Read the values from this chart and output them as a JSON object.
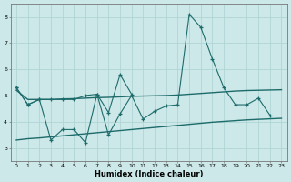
{
  "xlabel": "Humidex (Indice chaleur)",
  "xlim": [
    -0.5,
    23.5
  ],
  "ylim": [
    2.5,
    8.5
  ],
  "yticks": [
    3,
    4,
    5,
    6,
    7,
    8
  ],
  "xticks": [
    0,
    1,
    2,
    3,
    4,
    5,
    6,
    7,
    8,
    9,
    10,
    11,
    12,
    13,
    14,
    15,
    16,
    17,
    18,
    19,
    20,
    21,
    22,
    23
  ],
  "bg_color": "#cce8e8",
  "grid_color": "#b0d4d4",
  "line_color": "#1e6b6b",
  "series": {
    "line1_volatile": [
      5.3,
      4.65,
      4.85,
      3.3,
      3.7,
      3.7,
      3.2,
      5.05,
      3.5,
      4.3,
      5.0,
      4.1,
      4.4,
      4.6,
      4.65,
      8.1,
      7.6,
      6.4,
      5.3,
      4.65,
      4.65,
      4.9,
      4.25,
      null
    ],
    "line2_volatile": [
      5.3,
      4.65,
      4.85,
      4.85,
      4.85,
      4.85,
      5.0,
      5.05,
      4.35,
      5.8,
      5.05,
      null,
      null,
      null,
      null,
      null,
      null,
      null,
      null,
      null,
      null,
      null,
      null,
      null
    ],
    "line3_smooth": [
      5.2,
      4.85,
      4.85,
      4.85,
      4.87,
      4.88,
      4.9,
      4.92,
      4.93,
      4.95,
      4.97,
      4.98,
      4.99,
      5.0,
      5.02,
      5.05,
      5.08,
      5.11,
      5.14,
      5.17,
      5.19,
      5.2,
      5.21,
      5.22
    ],
    "line4_smooth": [
      3.3,
      3.35,
      3.38,
      3.42,
      3.46,
      3.5,
      3.54,
      3.58,
      3.62,
      3.66,
      3.7,
      3.74,
      3.78,
      3.82,
      3.86,
      3.9,
      3.94,
      3.98,
      4.01,
      4.04,
      4.07,
      4.09,
      4.11,
      4.13
    ]
  }
}
